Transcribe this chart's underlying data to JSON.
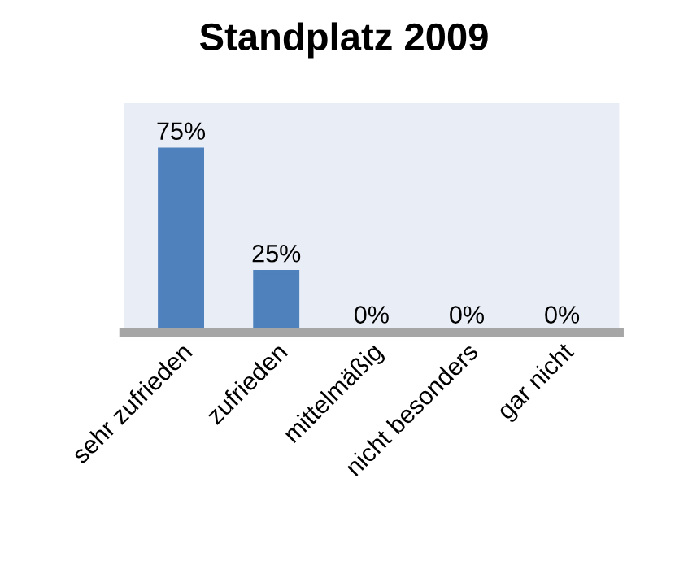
{
  "chart_data": {
    "type": "bar",
    "title": "Standplatz 2009",
    "categories": [
      "sehr zufrieden",
      "zufrieden",
      "mittelmäßig",
      "nicht besonders",
      "gar nicht"
    ],
    "values": [
      75,
      25,
      0,
      0,
      0
    ],
    "value_labels": [
      "75%",
      "25%",
      "0%",
      "0%",
      "0%"
    ],
    "color": "#4f81bd",
    "grid": false,
    "legend": false
  }
}
